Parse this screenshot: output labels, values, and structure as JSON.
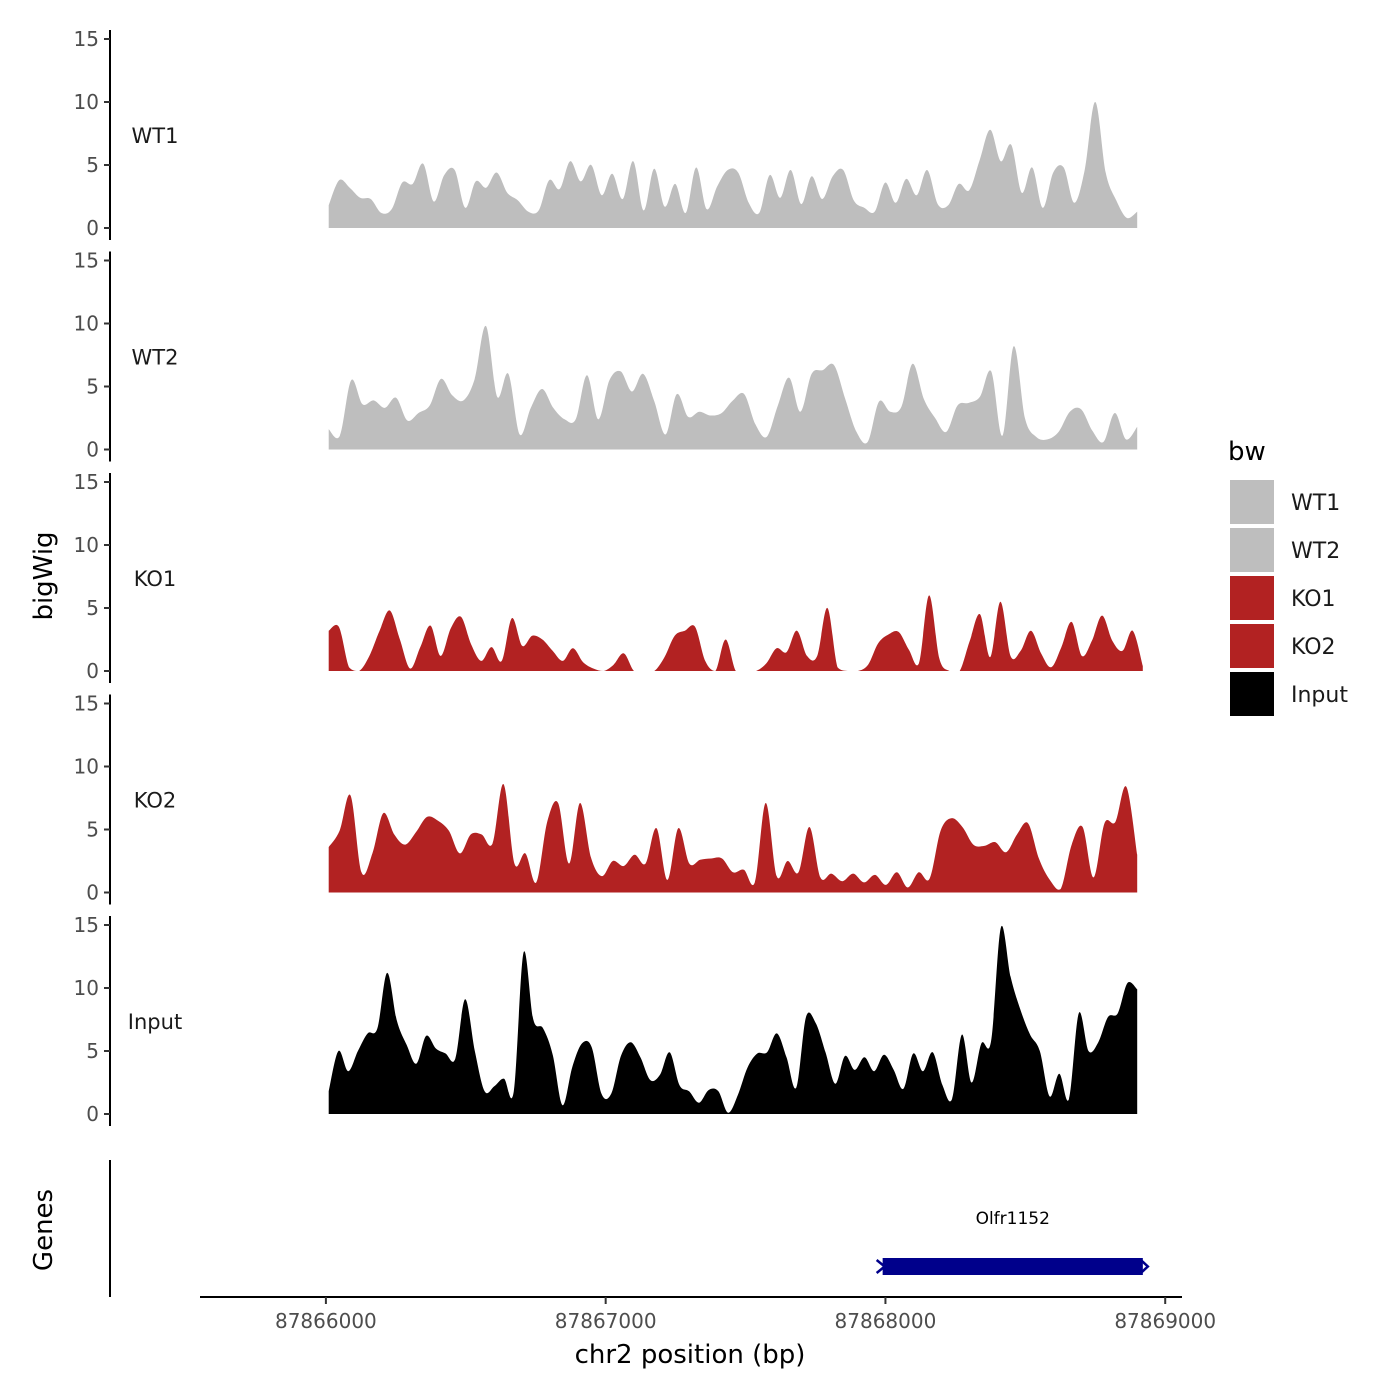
{
  "chart_data": {
    "type": "area",
    "xlabel": "chr2 position (bp)",
    "ylabel": "bigWig",
    "genes_label": "Genes",
    "xlim": [
      87865550,
      87869060
    ],
    "x_ticks": [
      87866000,
      87867000,
      87868000,
      87869000
    ],
    "x_tick_labels": [
      "87866000",
      "87867000",
      "87868000",
      "87869000"
    ],
    "ylim": [
      0,
      15
    ],
    "y_ticks": [
      0,
      5,
      10,
      15
    ],
    "y_tick_labels": [
      "0",
      "5",
      "10",
      "15"
    ],
    "legend": {
      "title": "bw",
      "placement": "right",
      "entries": [
        {
          "label": "WT1",
          "color": "#bebebe"
        },
        {
          "label": "WT2",
          "color": "#bebebe"
        },
        {
          "label": "KO1",
          "color": "#b22222"
        },
        {
          "label": "KO2",
          "color": "#b22222"
        },
        {
          "label": "Input",
          "color": "#000000"
        }
      ]
    },
    "tracks": [
      {
        "name": "WT1",
        "color": "#bebebe",
        "x_start": 87866010,
        "x_end": 87868900,
        "values": [
          1.8,
          3.8,
          3.2,
          2.4,
          2.3,
          1.2,
          1.5,
          3.6,
          3.5,
          5.1,
          2.1,
          4.2,
          4.6,
          1.6,
          3.7,
          3.2,
          4.4,
          2.8,
          2.2,
          1.3,
          1.4,
          3.8,
          3.1,
          5.3,
          3.7,
          5.0,
          2.6,
          4.3,
          2.3,
          5.3,
          1.4,
          4.7,
          1.7,
          3.5,
          1.2,
          4.8,
          1.5,
          3.3,
          4.6,
          4.4,
          2.0,
          1.2,
          4.2,
          2.4,
          4.6,
          1.9,
          4.1,
          2.3,
          4.1,
          4.6,
          2.2,
          1.6,
          1.3,
          3.6,
          2.0,
          3.9,
          2.6,
          4.6,
          1.9,
          1.8,
          3.5,
          3.0,
          5.4,
          7.8,
          5.3,
          6.6,
          2.8,
          4.8,
          1.6,
          4.4,
          4.8,
          2.0,
          4.6,
          10.0,
          4.4,
          2.2,
          0.8,
          1.3
        ]
      },
      {
        "name": "WT2",
        "color": "#bebebe",
        "x_start": 87866010,
        "x_end": 87868900,
        "values": [
          1.6,
          1.1,
          5.5,
          3.6,
          3.9,
          3.3,
          4.1,
          2.3,
          2.9,
          3.5,
          5.6,
          4.3,
          3.9,
          5.6,
          9.8,
          4.2,
          6.0,
          1.2,
          3.3,
          4.8,
          3.3,
          2.4,
          2.4,
          5.9,
          2.4,
          5.5,
          6.2,
          4.6,
          6.0,
          3.8,
          1.2,
          4.4,
          2.6,
          3.0,
          2.7,
          2.9,
          3.9,
          4.4,
          2.0,
          1.0,
          3.5,
          5.7,
          3.0,
          6.0,
          6.3,
          6.7,
          4.0,
          1.4,
          0.6,
          3.8,
          3.0,
          3.4,
          6.8,
          4.0,
          2.5,
          1.4,
          3.5,
          3.7,
          4.2,
          6.2,
          1.1,
          8.2,
          2.5,
          1.0,
          0.8,
          1.4,
          3.0,
          3.2,
          1.5,
          0.6,
          2.9,
          0.8,
          1.8
        ]
      },
      {
        "name": "KO1",
        "color": "#b22222",
        "x_start": 87866010,
        "x_end": 87868920,
        "values": [
          3.2,
          3.5,
          0.3,
          0,
          1.2,
          3.2,
          4.8,
          2.5,
          0.2,
          1.9,
          3.6,
          1.2,
          3.4,
          4.3,
          2.1,
          0.8,
          1.9,
          0.8,
          4.2,
          2.0,
          2.8,
          2.5,
          1.6,
          0.8,
          1.8,
          0.7,
          0.2,
          0,
          0.5,
          1.4,
          0,
          0,
          0,
          1.1,
          2.8,
          3.2,
          3.5,
          0.8,
          0,
          2.5,
          0,
          0,
          0,
          0.6,
          1.8,
          1.5,
          3.2,
          1.2,
          1.2,
          5.0,
          0.3,
          0,
          0,
          0.5,
          2.2,
          2.9,
          3.1,
          1.7,
          0.6,
          6.0,
          1.0,
          0,
          0,
          2.4,
          4.5,
          1.1,
          5.5,
          1.2,
          1.6,
          3.2,
          1.4,
          0.3,
          1.9,
          3.9,
          1.2,
          2.4,
          4.4,
          2.4,
          1.6,
          3.2,
          0.4
        ]
      },
      {
        "name": "KO2",
        "color": "#b22222",
        "x_start": 87866010,
        "x_end": 87868900,
        "values": [
          3.6,
          4.9,
          7.7,
          1.6,
          3.1,
          6.3,
          4.6,
          3.8,
          4.8,
          6.0,
          5.7,
          4.9,
          3.1,
          4.6,
          4.6,
          3.9,
          8.6,
          2.3,
          3.1,
          0.8,
          5.6,
          7.1,
          2.3,
          7.1,
          2.8,
          1.3,
          2.5,
          2.1,
          3.0,
          2.3,
          5.1,
          1.0,
          5.1,
          2.3,
          2.6,
          2.7,
          2.7,
          1.6,
          1.8,
          0.8,
          7.1,
          1.3,
          2.5,
          1.6,
          5.2,
          1.2,
          1.5,
          0.9,
          1.5,
          0.8,
          1.4,
          0.6,
          1.6,
          0.4,
          1.6,
          1.1,
          4.9,
          5.9,
          5.2,
          3.8,
          3.7,
          4.0,
          3.2,
          4.6,
          5.5,
          2.7,
          1.0,
          0.3,
          3.8,
          5.2,
          1.2,
          5.5,
          5.6,
          8.4,
          3.0
        ]
      },
      {
        "name": "Input",
        "color": "#000000",
        "x_start": 87866010,
        "x_end": 87868900,
        "values": [
          1.8,
          5.0,
          3.4,
          5.0,
          6.4,
          6.8,
          11.2,
          7.4,
          5.5,
          4.0,
          6.2,
          5.2,
          4.8,
          4.4,
          9.1,
          5.0,
          1.8,
          2.2,
          2.8,
          1.8,
          12.8,
          7.5,
          6.8,
          4.7,
          0.7,
          3.7,
          5.6,
          5.3,
          1.6,
          1.6,
          4.6,
          5.7,
          4.5,
          2.7,
          3.1,
          4.9,
          2.3,
          1.8,
          0.9,
          1.9,
          1.8,
          0.1,
          1.5,
          3.7,
          4.8,
          4.9,
          6.4,
          4.5,
          2.1,
          7.7,
          7.2,
          4.9,
          2.4,
          4.6,
          3.5,
          4.5,
          3.4,
          4.7,
          3.5,
          2.0,
          4.8,
          3.4,
          4.9,
          2.3,
          1.2,
          6.3,
          2.5,
          5.6,
          5.8,
          14.8,
          10.9,
          8.3,
          6.3,
          5.0,
          1.4,
          3.2,
          1.2,
          8.0,
          5.0,
          5.7,
          7.7,
          8.0,
          10.4,
          9.9
        ]
      }
    ],
    "genes": [
      {
        "name": "Olfr1152",
        "start": 87867990,
        "end": 87868920,
        "color": "#00008b"
      }
    ]
  }
}
